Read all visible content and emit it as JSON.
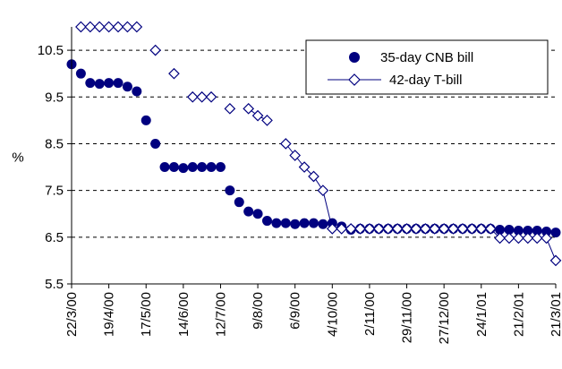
{
  "chart_data": {
    "type": "scatter",
    "title": "",
    "xlabel": "",
    "ylabel": "%",
    "ylim": [
      5.5,
      11.0
    ],
    "yticks": [
      "5.5",
      "6.5",
      "7.5",
      "8.5",
      "9.5",
      "10.5"
    ],
    "grid": "horizontal dashed",
    "legend_position": "top-right",
    "x_categories": [
      "22/3/00",
      "19/4/00",
      "17/5/00",
      "14/6/00",
      "12/7/00",
      "9/8/00",
      "6/9/00",
      "4/10/00",
      "2/11/00",
      "29/11/00",
      "27/12/00",
      "24/1/01",
      "21/2/01",
      "21/3/01"
    ],
    "x_range": [
      0,
      52
    ],
    "series": [
      {
        "name": "35-day CNB bill",
        "style": "dot",
        "color": "#00007f",
        "x": [
          0,
          1,
          2,
          3,
          4,
          5,
          6,
          7,
          8,
          9,
          10,
          11,
          12,
          13,
          14,
          15,
          16,
          17,
          18,
          19,
          20,
          21,
          22,
          23,
          24,
          25,
          26,
          27,
          28,
          29,
          30,
          31,
          32,
          33,
          34,
          35,
          36,
          37,
          38,
          39,
          40,
          41,
          42,
          43,
          44,
          45,
          46,
          47,
          48,
          49,
          50,
          51,
          52
        ],
        "values": [
          10.2,
          10.0,
          9.8,
          9.78,
          9.8,
          9.8,
          9.72,
          9.62,
          9.0,
          8.5,
          8.0,
          8.0,
          7.98,
          8.0,
          8.0,
          8.0,
          8.0,
          7.5,
          7.25,
          7.05,
          7.0,
          6.85,
          6.8,
          6.8,
          6.78,
          6.8,
          6.8,
          6.78,
          6.8,
          6.73,
          6.66,
          6.68,
          6.68,
          6.68,
          6.68,
          6.68,
          6.68,
          6.68,
          6.68,
          6.68,
          6.68,
          6.68,
          6.68,
          6.68,
          6.68,
          6.68,
          6.66,
          6.66,
          6.64,
          6.64,
          6.64,
          6.62,
          6.6
        ]
      },
      {
        "name": "42-day T-bill",
        "style": "open-diamond-line",
        "color": "#00007f",
        "x": [
          0,
          1,
          2,
          3,
          4,
          5,
          6,
          7,
          8,
          9,
          10,
          11,
          12,
          13,
          14,
          15,
          16,
          17,
          18,
          19,
          20,
          21,
          22,
          23,
          24,
          25,
          26,
          27,
          28,
          29,
          30,
          31,
          32,
          33,
          34,
          35,
          36,
          37,
          38,
          39,
          40,
          41,
          42,
          43,
          44,
          45,
          46,
          47,
          48,
          49,
          50,
          51,
          52
        ],
        "values": [
          null,
          11.0,
          11.0,
          11.0,
          11.0,
          11.0,
          11.0,
          11.0,
          null,
          10.5,
          null,
          10.0,
          null,
          9.5,
          9.5,
          9.5,
          null,
          9.25,
          null,
          9.25,
          9.1,
          9.0,
          null,
          8.5,
          8.25,
          8.0,
          7.8,
          7.5,
          6.68,
          6.68,
          6.68,
          6.68,
          6.68,
          6.68,
          6.68,
          6.68,
          6.68,
          6.68,
          6.68,
          6.68,
          6.68,
          6.68,
          6.68,
          6.68,
          6.68,
          6.68,
          6.48,
          6.48,
          6.48,
          6.48,
          6.48,
          6.48,
          6.0
        ]
      }
    ]
  }
}
